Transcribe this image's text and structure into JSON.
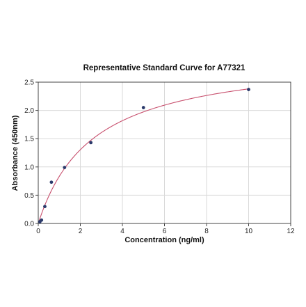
{
  "chart_data": {
    "type": "scatter",
    "title": "Representative Standard Curve for A77321",
    "xlabel": "Concentration (ng/ml)",
    "ylabel": "Absorbance (450nm)",
    "xlim": [
      0,
      12
    ],
    "ylim": [
      0,
      2.5
    ],
    "xticks": [
      0,
      2,
      4,
      6,
      8,
      10,
      12
    ],
    "yticks": [
      0.0,
      0.5,
      1.0,
      1.5,
      2.0,
      2.5
    ],
    "ytick_labels": [
      "0.0",
      "0.5",
      "1.0",
      "1.5",
      "2.0",
      "2.5"
    ],
    "grid": true,
    "series": [
      {
        "x": [
          0.078,
          0.156,
          0.313,
          0.625,
          1.25,
          2.5,
          5.0,
          10.0
        ],
        "y": [
          0.03,
          0.06,
          0.3,
          0.73,
          0.99,
          1.43,
          2.05,
          2.37
        ],
        "color": "#2b3a6b"
      }
    ],
    "fit_curve": {
      "color": "#c8506e"
    }
  }
}
